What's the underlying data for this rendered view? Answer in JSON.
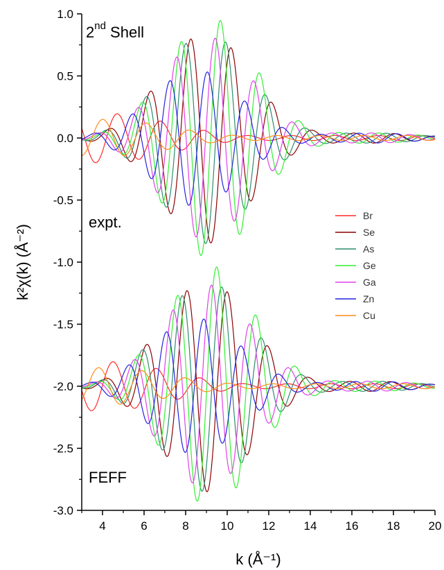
{
  "chart_data": {
    "type": "line",
    "xlabel": "k (Å⁻¹)",
    "ylabel": "k²χ(k) (Å⁻²)",
    "xlim": [
      3,
      20
    ],
    "ylim": [
      -3.0,
      1.0
    ],
    "x_ticks": [
      4,
      6,
      8,
      10,
      12,
      14,
      16,
      18,
      20
    ],
    "x_tick_labels": [
      "4",
      "6",
      "8",
      "10",
      "12",
      "14",
      "16",
      "18",
      "20"
    ],
    "y_ticks": [
      1.0,
      0.5,
      0.0,
      -0.5,
      -1.0,
      -1.5,
      -2.0,
      -2.5,
      -3.0
    ],
    "y_tick_labels": [
      "1.0",
      "0.5",
      "0.0",
      "-0.5",
      "-1.0",
      "-1.5",
      "-2.0",
      "-2.5",
      "-3.0"
    ],
    "grid": false,
    "legend_position": "right-middle",
    "annotations": {
      "shell_main": "2",
      "shell_sup": "nd",
      "shell_rest": " Shell",
      "expt": "expt.",
      "feff": "FEFF"
    },
    "panels": [
      {
        "label": "expt.",
        "offset": 0.0
      },
      {
        "label": "FEFF",
        "offset": -2.0
      }
    ],
    "series": [
      {
        "name": "Br",
        "color": "#ff2a2a",
        "peak_amplitude": 0.2,
        "peak_k": 4.0,
        "frequency": 3.0
      },
      {
        "name": "Se",
        "color": "#8b0000",
        "peak_amplitude": 0.85,
        "peak_k": 9.0,
        "frequency": 3.2
      },
      {
        "name": "As",
        "color": "#2e8b6e",
        "peak_amplitude": 0.85,
        "peak_k": 9.0,
        "frequency": 3.25
      },
      {
        "name": "Ge",
        "color": "#33ee33",
        "peak_amplitude": 0.97,
        "peak_k": 9.2,
        "frequency": 3.3
      },
      {
        "name": "Ga",
        "color": "#e040e8",
        "peak_amplitude": 0.82,
        "peak_k": 9.0,
        "frequency": 3.35
      },
      {
        "name": "Zn",
        "color": "#2222dd",
        "peak_amplitude": 0.55,
        "peak_k": 8.5,
        "frequency": 3.45
      },
      {
        "name": "Cu",
        "color": "#ff8c1a",
        "peak_amplitude": 0.15,
        "peak_k": 4.0,
        "frequency": 3.0
      }
    ]
  }
}
